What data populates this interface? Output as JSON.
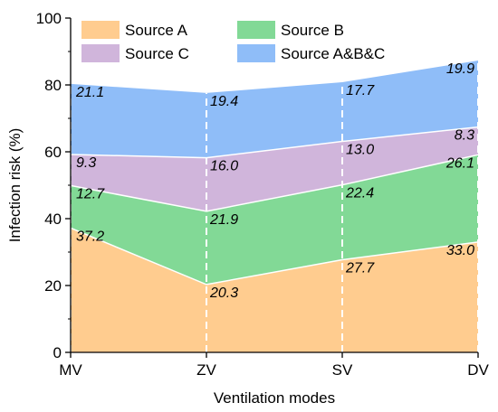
{
  "chart_data": {
    "type": "area",
    "stacked": true,
    "xlabel": "Ventilation modes",
    "ylabel": "Infection risk (%)",
    "categories": [
      "MV",
      "ZV",
      "SV",
      "DV"
    ],
    "ylim": [
      0,
      100
    ],
    "yticks": [
      0,
      20,
      40,
      60,
      80,
      100
    ],
    "grid": false,
    "legend_position": "top",
    "series": [
      {
        "name": "Source A",
        "values": [
          37.2,
          20.3,
          27.7,
          33.0
        ],
        "labels": [
          "37.2",
          "20.3",
          "27.7",
          "33.0"
        ],
        "color": "#FFCC8F"
      },
      {
        "name": "Source B",
        "values": [
          12.7,
          21.9,
          22.4,
          26.1
        ],
        "labels": [
          "12.7",
          "21.9",
          "22.4",
          "26.1"
        ],
        "color": "#82D996"
      },
      {
        "name": "Source C",
        "values": [
          9.3,
          16.0,
          13.0,
          8.3
        ],
        "labels": [
          "9.3",
          "16.0",
          "13.0",
          "8.3"
        ],
        "color": "#D0B5DB"
      },
      {
        "name": "Source A&B&C",
        "values": [
          21.1,
          19.4,
          17.7,
          19.9
        ],
        "labels": [
          "21.1",
          "19.4",
          "17.7",
          "19.9"
        ],
        "color": "#8FBDF8"
      }
    ]
  }
}
